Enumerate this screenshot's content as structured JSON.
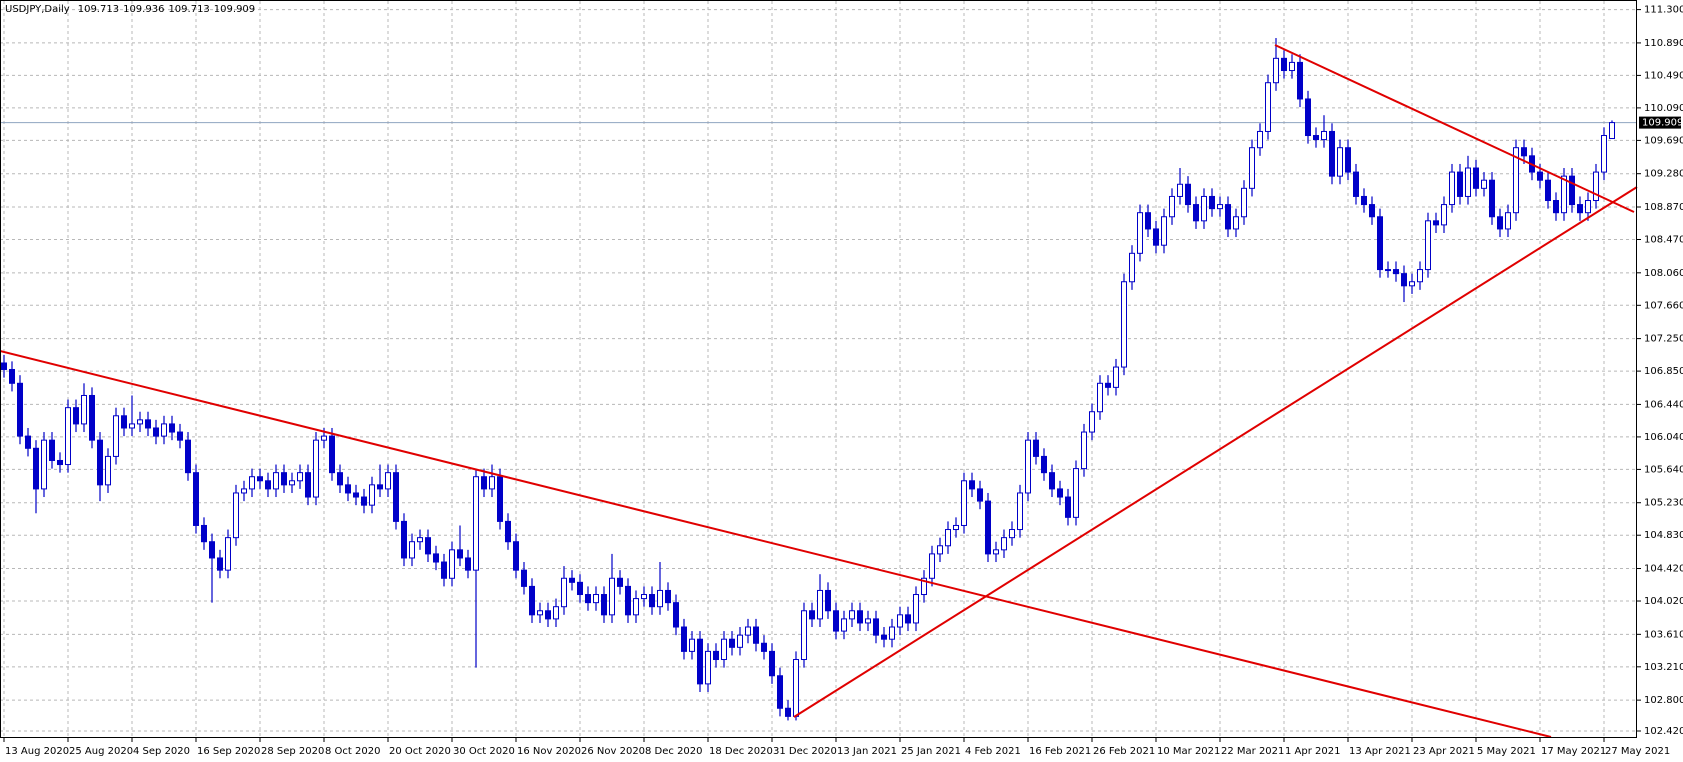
{
  "chart_data": {
    "type": "candlestick",
    "title": "USDJPY,Daily",
    "color": "#0000c8",
    "grid": true,
    "ylim": [
      102.42,
      111.3
    ],
    "yticks": [
      {
        "value": 111.3,
        "label": "111.300"
      },
      {
        "value": 110.89,
        "label": "110.890"
      },
      {
        "value": 110.49,
        "label": "110.490"
      },
      {
        "value": 110.09,
        "label": "110.090"
      },
      {
        "value": 109.69,
        "label": "109.690"
      },
      {
        "value": 109.28,
        "label": "109.280"
      },
      {
        "value": 108.87,
        "label": "108.870"
      },
      {
        "value": 108.47,
        "label": "108.470"
      },
      {
        "value": 108.06,
        "label": "108.060"
      },
      {
        "value": 107.66,
        "label": "107.660"
      },
      {
        "value": 107.25,
        "label": "107.250"
      },
      {
        "value": 106.85,
        "label": "106.850"
      },
      {
        "value": 106.44,
        "label": "106.440"
      },
      {
        "value": 106.04,
        "label": "106.040"
      },
      {
        "value": 105.64,
        "label": "105.640"
      },
      {
        "value": 105.23,
        "label": "105.230"
      },
      {
        "value": 104.83,
        "label": "104.830"
      },
      {
        "value": 104.42,
        "label": "104.420"
      },
      {
        "value": 104.02,
        "label": "104.020"
      },
      {
        "value": 103.61,
        "label": "103.610"
      },
      {
        "value": 103.21,
        "label": "103.210"
      },
      {
        "value": 102.8,
        "label": "102.800"
      },
      {
        "value": 102.42,
        "label": "102.420"
      }
    ],
    "categories": [
      "13 Aug 2020",
      null,
      null,
      null,
      null,
      null,
      null,
      null,
      "25 Aug 2020",
      null,
      null,
      null,
      null,
      null,
      null,
      null,
      "4 Sep 2020",
      null,
      null,
      null,
      null,
      null,
      null,
      null,
      "16 Sep 2020",
      null,
      null,
      null,
      null,
      null,
      null,
      null,
      "28 Sep 2020",
      null,
      null,
      null,
      null,
      null,
      null,
      null,
      "8 Oct 2020",
      null,
      null,
      null,
      null,
      null,
      null,
      null,
      "20 Oct 2020",
      null,
      null,
      null,
      null,
      null,
      null,
      null,
      "30 Oct 2020",
      null,
      null,
      null,
      null,
      null,
      null,
      null,
      "16 Nov 2020",
      null,
      null,
      null,
      null,
      null,
      null,
      null,
      "26 Nov 2020",
      null,
      null,
      null,
      null,
      null,
      null,
      null,
      "8 Dec 2020",
      null,
      null,
      null,
      null,
      null,
      null,
      null,
      "18 Dec 2020",
      null,
      null,
      null,
      null,
      null,
      null,
      null,
      "31 Dec 2020",
      null,
      null,
      null,
      null,
      null,
      null,
      null,
      "13 Jan 2021",
      null,
      null,
      null,
      null,
      null,
      null,
      null,
      "25 Jan 2021",
      null,
      null,
      null,
      null,
      null,
      null,
      null,
      "4 Feb 2021",
      null,
      null,
      null,
      null,
      null,
      null,
      null,
      "16 Feb 2021",
      null,
      null,
      null,
      null,
      null,
      null,
      null,
      "26 Feb 2021",
      null,
      null,
      null,
      null,
      null,
      null,
      null,
      "10 Mar 2021",
      null,
      null,
      null,
      null,
      null,
      null,
      null,
      "22 Mar 2021",
      null,
      null,
      null,
      null,
      null,
      null,
      null,
      "1 Apr 2021",
      null,
      null,
      null,
      null,
      null,
      null,
      null,
      "13 Apr 2021",
      null,
      null,
      null,
      null,
      null,
      null,
      null,
      "23 Apr 2021",
      null,
      null,
      null,
      null,
      null,
      null,
      null,
      "5 May 2021",
      null,
      null,
      null,
      null,
      null,
      null,
      null,
      "17 May 2021",
      null,
      null,
      null,
      null,
      null,
      null,
      null,
      "27 May 2021",
      null
    ],
    "ohlc": [
      [
        106.95,
        107.05,
        106.77,
        106.87
      ],
      [
        106.87,
        106.97,
        106.6,
        106.7
      ],
      [
        106.7,
        106.8,
        105.95,
        106.05
      ],
      [
        106.05,
        106.15,
        105.8,
        105.9
      ],
      [
        105.9,
        106,
        105.1,
        105.4
      ],
      [
        105.4,
        106.1,
        105.3,
        106
      ],
      [
        106,
        106.1,
        105.65,
        105.75
      ],
      [
        105.75,
        105.85,
        105.6,
        105.7
      ],
      [
        105.7,
        106.5,
        105.6,
        106.4
      ],
      [
        106.4,
        106.5,
        106.1,
        106.2
      ],
      [
        106.2,
        106.7,
        106.1,
        106.55
      ],
      [
        106.55,
        106.65,
        105.9,
        106
      ],
      [
        106,
        106.1,
        105.25,
        105.45
      ],
      [
        105.45,
        105.9,
        105.35,
        105.8
      ],
      [
        105.8,
        106.4,
        105.7,
        106.3
      ],
      [
        106.3,
        106.4,
        106.05,
        106.15
      ],
      [
        106.15,
        106.55,
        106.05,
        106.2
      ],
      [
        106.2,
        106.35,
        106.1,
        106.25
      ],
      [
        106.25,
        106.35,
        106.05,
        106.15
      ],
      [
        106.15,
        106.25,
        105.95,
        106.05
      ],
      [
        106.05,
        106.3,
        105.95,
        106.2
      ],
      [
        106.2,
        106.3,
        106,
        106.1
      ],
      [
        106.1,
        106.2,
        105.9,
        106
      ],
      [
        106,
        106.1,
        105.5,
        105.6
      ],
      [
        105.6,
        105.7,
        104.85,
        104.95
      ],
      [
        104.95,
        105.05,
        104.65,
        104.75
      ],
      [
        104.75,
        104.85,
        104,
        104.55
      ],
      [
        104.55,
        104.65,
        104.3,
        104.4
      ],
      [
        104.4,
        104.9,
        104.3,
        104.8
      ],
      [
        104.8,
        105.45,
        104.7,
        105.35
      ],
      [
        105.35,
        105.5,
        105.25,
        105.4
      ],
      [
        105.4,
        105.65,
        105.3,
        105.55
      ],
      [
        105.55,
        105.65,
        105.4,
        105.5
      ],
      [
        105.5,
        105.6,
        105.3,
        105.4
      ],
      [
        105.4,
        105.7,
        105.3,
        105.6
      ],
      [
        105.6,
        105.7,
        105.35,
        105.45
      ],
      [
        105.45,
        105.6,
        105.35,
        105.5
      ],
      [
        105.5,
        105.7,
        105.4,
        105.6
      ],
      [
        105.6,
        105.7,
        105.2,
        105.3
      ],
      [
        105.3,
        106.1,
        105.2,
        106
      ],
      [
        106,
        106.15,
        105.9,
        106.05
      ],
      [
        106.05,
        106.15,
        105.5,
        105.6
      ],
      [
        105.6,
        105.7,
        105.35,
        105.45
      ],
      [
        105.45,
        105.55,
        105.25,
        105.35
      ],
      [
        105.35,
        105.45,
        105.2,
        105.3
      ],
      [
        105.3,
        105.4,
        105.1,
        105.2
      ],
      [
        105.2,
        105.55,
        105.1,
        105.45
      ],
      [
        105.45,
        105.7,
        105.3,
        105.4
      ],
      [
        105.4,
        105.7,
        105.3,
        105.6
      ],
      [
        105.6,
        105.7,
        104.9,
        105
      ],
      [
        105,
        105.1,
        104.45,
        104.55
      ],
      [
        104.55,
        104.85,
        104.45,
        104.75
      ],
      [
        104.75,
        104.9,
        104.65,
        104.8
      ],
      [
        104.8,
        104.9,
        104.5,
        104.6
      ],
      [
        104.6,
        104.7,
        104.4,
        104.5
      ],
      [
        104.5,
        104.6,
        104.2,
        104.3
      ],
      [
        104.3,
        104.75,
        104.2,
        104.65
      ],
      [
        104.65,
        104.95,
        104.45,
        104.55
      ],
      [
        104.55,
        104.65,
        104.3,
        104.4
      ],
      [
        104.4,
        105.65,
        103.2,
        105.55
      ],
      [
        105.55,
        105.65,
        105.3,
        105.4
      ],
      [
        105.4,
        105.7,
        105.3,
        105.55
      ],
      [
        105.55,
        105.65,
        104.9,
        105
      ],
      [
        105,
        105.1,
        104.65,
        104.75
      ],
      [
        104.75,
        104.85,
        104.3,
        104.4
      ],
      [
        104.4,
        104.5,
        104.1,
        104.2
      ],
      [
        104.2,
        104.3,
        103.75,
        103.85
      ],
      [
        103.85,
        104,
        103.75,
        103.9
      ],
      [
        103.9,
        104,
        103.7,
        103.8
      ],
      [
        103.8,
        104.05,
        103.7,
        103.95
      ],
      [
        103.95,
        104.45,
        103.85,
        104.3
      ],
      [
        104.3,
        104.4,
        104.15,
        104.25
      ],
      [
        104.25,
        104.35,
        104,
        104.1
      ],
      [
        104.1,
        104.2,
        103.9,
        104
      ],
      [
        104,
        104.2,
        103.9,
        104.1
      ],
      [
        104.1,
        104.2,
        103.75,
        103.85
      ],
      [
        103.85,
        104.6,
        103.75,
        104.3
      ],
      [
        104.3,
        104.4,
        104.1,
        104.2
      ],
      [
        104.2,
        104.3,
        103.75,
        103.85
      ],
      [
        103.85,
        104.15,
        103.75,
        104.05
      ],
      [
        104.05,
        104.2,
        103.95,
        104.1
      ],
      [
        104.1,
        104.2,
        103.85,
        103.95
      ],
      [
        103.95,
        104.5,
        103.85,
        104.15
      ],
      [
        104.15,
        104.25,
        103.9,
        104
      ],
      [
        104,
        104.1,
        103.6,
        103.7
      ],
      [
        103.7,
        103.8,
        103.3,
        103.4
      ],
      [
        103.4,
        103.65,
        103.3,
        103.55
      ],
      [
        103.55,
        103.65,
        102.9,
        103
      ],
      [
        103,
        103.5,
        102.9,
        103.4
      ],
      [
        103.4,
        103.5,
        103.2,
        103.3
      ],
      [
        103.3,
        103.65,
        103.2,
        103.55
      ],
      [
        103.55,
        103.65,
        103.35,
        103.45
      ],
      [
        103.45,
        103.7,
        103.35,
        103.6
      ],
      [
        103.6,
        103.8,
        103.5,
        103.7
      ],
      [
        103.7,
        103.8,
        103.4,
        103.5
      ],
      [
        103.5,
        103.6,
        103.3,
        103.4
      ],
      [
        103.4,
        103.5,
        103,
        103.1
      ],
      [
        103.1,
        103.2,
        102.6,
        102.7
      ],
      [
        102.7,
        102.8,
        102.55,
        102.6
      ],
      [
        102.6,
        103.4,
        102.55,
        103.3
      ],
      [
        103.3,
        104,
        103.2,
        103.9
      ],
      [
        103.9,
        104,
        103.7,
        103.8
      ],
      [
        103.8,
        104.35,
        103.7,
        104.15
      ],
      [
        104.15,
        104.25,
        103.8,
        103.9
      ],
      [
        103.9,
        104,
        103.55,
        103.65
      ],
      [
        103.65,
        103.9,
        103.55,
        103.8
      ],
      [
        103.8,
        104,
        103.7,
        103.9
      ],
      [
        103.9,
        104,
        103.65,
        103.75
      ],
      [
        103.75,
        103.9,
        103.65,
        103.8
      ],
      [
        103.8,
        103.9,
        103.5,
        103.6
      ],
      [
        103.6,
        103.7,
        103.45,
        103.55
      ],
      [
        103.55,
        103.8,
        103.45,
        103.7
      ],
      [
        103.7,
        103.95,
        103.6,
        103.85
      ],
      [
        103.85,
        103.95,
        103.65,
        103.75
      ],
      [
        103.75,
        104.2,
        103.65,
        104.1
      ],
      [
        104.1,
        104.4,
        104,
        104.3
      ],
      [
        104.3,
        104.7,
        104.2,
        104.6
      ],
      [
        104.6,
        104.8,
        104.5,
        104.7
      ],
      [
        104.7,
        105,
        104.6,
        104.9
      ],
      [
        104.9,
        105.05,
        104.8,
        104.95
      ],
      [
        104.95,
        105.6,
        104.85,
        105.5
      ],
      [
        105.5,
        105.6,
        105.3,
        105.4
      ],
      [
        105.4,
        105.5,
        105.15,
        105.25
      ],
      [
        105.25,
        105.35,
        104.5,
        104.6
      ],
      [
        104.6,
        104.75,
        104.5,
        104.65
      ],
      [
        104.65,
        104.9,
        104.55,
        104.8
      ],
      [
        104.8,
        105,
        104.7,
        104.9
      ],
      [
        104.9,
        105.45,
        104.8,
        105.35
      ],
      [
        105.35,
        106.1,
        105.25,
        106
      ],
      [
        106,
        106.1,
        105.7,
        105.8
      ],
      [
        105.8,
        105.9,
        105.5,
        105.6
      ],
      [
        105.6,
        105.7,
        105.3,
        105.4
      ],
      [
        105.4,
        105.5,
        105.2,
        105.3
      ],
      [
        105.3,
        105.4,
        104.95,
        105.05
      ],
      [
        105.05,
        105.75,
        104.95,
        105.65
      ],
      [
        105.65,
        106.2,
        105.55,
        106.1
      ],
      [
        106.1,
        106.45,
        106,
        106.35
      ],
      [
        106.35,
        106.8,
        106.25,
        106.7
      ],
      [
        106.7,
        106.8,
        106.55,
        106.65
      ],
      [
        106.65,
        107,
        106.55,
        106.9
      ],
      [
        106.9,
        108.05,
        106.8,
        107.95
      ],
      [
        107.95,
        108.4,
        107.85,
        108.3
      ],
      [
        108.3,
        108.9,
        108.2,
        108.8
      ],
      [
        108.8,
        108.9,
        108.5,
        108.6
      ],
      [
        108.6,
        108.7,
        108.3,
        108.4
      ],
      [
        108.4,
        108.85,
        108.3,
        108.75
      ],
      [
        108.75,
        109.1,
        108.65,
        109
      ],
      [
        109,
        109.35,
        108.9,
        109.15
      ],
      [
        109.15,
        109.25,
        108.8,
        108.9
      ],
      [
        108.9,
        109,
        108.6,
        108.7
      ],
      [
        108.7,
        109.1,
        108.6,
        109
      ],
      [
        109,
        109.1,
        108.75,
        108.85
      ],
      [
        108.85,
        109,
        108.75,
        108.9
      ],
      [
        108.9,
        109,
        108.5,
        108.6
      ],
      [
        108.6,
        108.85,
        108.5,
        108.75
      ],
      [
        108.75,
        109.2,
        108.65,
        109.1
      ],
      [
        109.1,
        109.7,
        109,
        109.6
      ],
      [
        109.6,
        109.9,
        109.5,
        109.8
      ],
      [
        109.8,
        110.5,
        109.7,
        110.4
      ],
      [
        110.4,
        110.95,
        110.3,
        110.7
      ],
      [
        110.7,
        110.8,
        110.45,
        110.55
      ],
      [
        110.55,
        110.75,
        110.45,
        110.65
      ],
      [
        110.65,
        110.75,
        110.1,
        110.2
      ],
      [
        110.2,
        110.3,
        109.65,
        109.75
      ],
      [
        109.75,
        109.85,
        109.6,
        109.7
      ],
      [
        109.7,
        110,
        109.6,
        109.8
      ],
      [
        109.8,
        109.9,
        109.15,
        109.25
      ],
      [
        109.25,
        109.7,
        109.15,
        109.6
      ],
      [
        109.6,
        109.7,
        109.2,
        109.3
      ],
      [
        109.3,
        109.4,
        108.9,
        109
      ],
      [
        109,
        109.1,
        108.8,
        108.9
      ],
      [
        108.9,
        109,
        108.65,
        108.75
      ],
      [
        108.75,
        108.85,
        108,
        108.1
      ],
      [
        108.1,
        108.2,
        108,
        108.1
      ],
      [
        108.1,
        108.2,
        107.95,
        108.05
      ],
      [
        108.05,
        108.15,
        107.7,
        107.9
      ],
      [
        107.9,
        108.05,
        107.8,
        107.95
      ],
      [
        107.95,
        108.2,
        107.85,
        108.1
      ],
      [
        108.1,
        108.8,
        108,
        108.7
      ],
      [
        108.7,
        108.8,
        108.55,
        108.65
      ],
      [
        108.65,
        109,
        108.55,
        108.9
      ],
      [
        108.9,
        109.4,
        108.8,
        109.3
      ],
      [
        109.3,
        109.4,
        108.9,
        109
      ],
      [
        109,
        109.5,
        108.9,
        109.35
      ],
      [
        109.35,
        109.45,
        109,
        109.1
      ],
      [
        109.1,
        109.3,
        109,
        109.2
      ],
      [
        109.2,
        109.3,
        108.65,
        108.75
      ],
      [
        108.75,
        108.85,
        108.5,
        108.6
      ],
      [
        108.6,
        108.9,
        108.5,
        108.8
      ],
      [
        108.8,
        109.7,
        108.7,
        109.6
      ],
      [
        109.6,
        109.7,
        109.4,
        109.5
      ],
      [
        109.5,
        109.6,
        109.2,
        109.3
      ],
      [
        109.3,
        109.4,
        109.1,
        109.2
      ],
      [
        109.2,
        109.3,
        108.85,
        108.95
      ],
      [
        108.95,
        109.05,
        108.7,
        108.8
      ],
      [
        108.8,
        109.35,
        108.7,
        109.25
      ],
      [
        109.25,
        109.35,
        108.8,
        108.9
      ],
      [
        108.9,
        109,
        108.7,
        108.8
      ],
      [
        108.8,
        109.05,
        108.7,
        108.95
      ],
      [
        108.95,
        109.4,
        108.85,
        109.3
      ],
      [
        109.3,
        109.85,
        109.2,
        109.75
      ],
      [
        109.713,
        109.936,
        109.713,
        109.909
      ]
    ]
  }
}
